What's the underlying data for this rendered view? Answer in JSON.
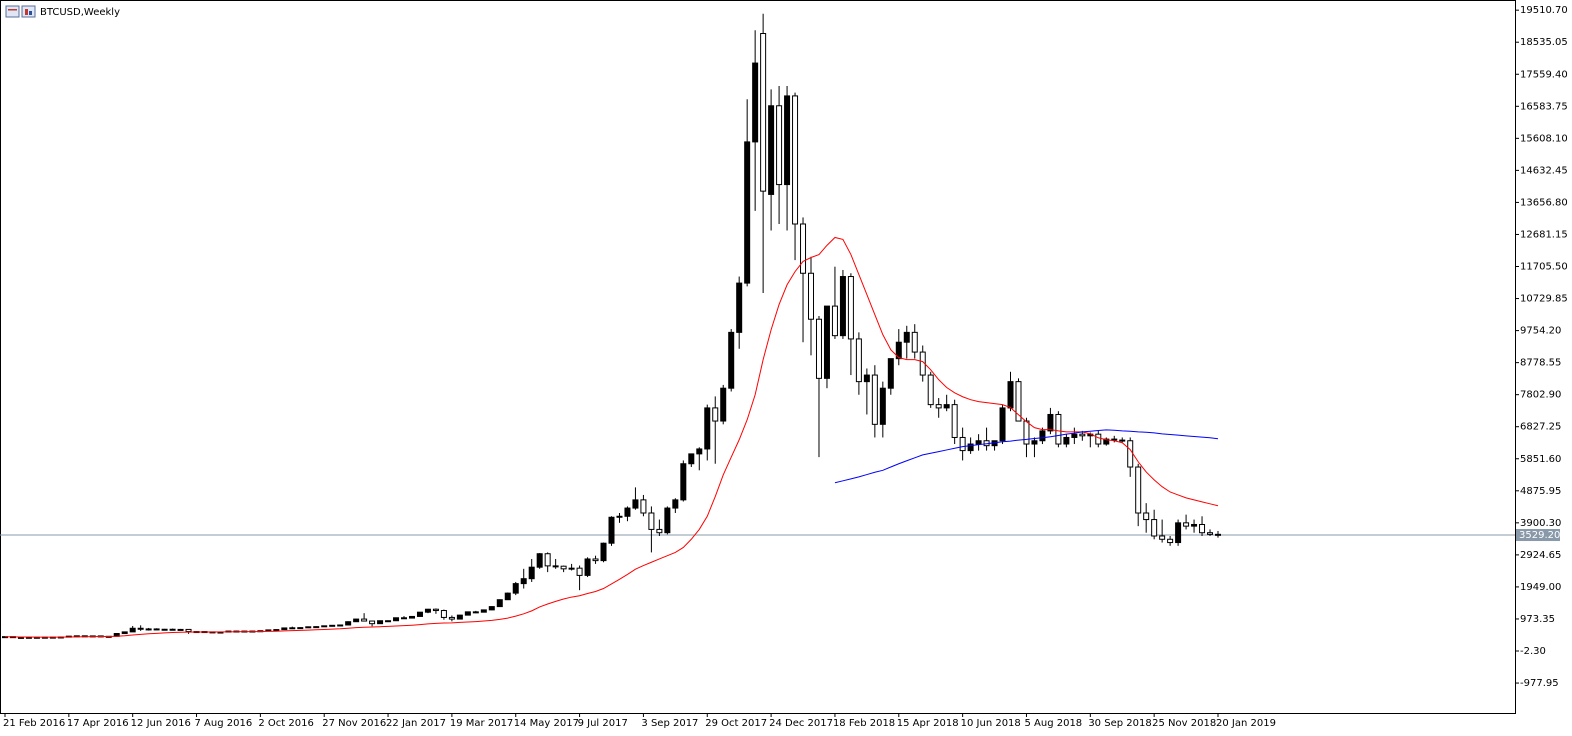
{
  "chart_data": {
    "type": "candlestick",
    "title": "BTCUSD,Weekly",
    "bull_color": "#000000",
    "bear_color": "#ffffff",
    "wick_color": "#000000",
    "categories": [
      "21 Feb 2016",
      null,
      null,
      null,
      null,
      null,
      null,
      null,
      "17 Apr 2016",
      null,
      null,
      null,
      null,
      null,
      null,
      null,
      "12 Jun 2016",
      null,
      null,
      null,
      null,
      null,
      null,
      null,
      "7 Aug 2016",
      null,
      null,
      null,
      null,
      null,
      null,
      null,
      "2 Oct 2016",
      null,
      null,
      null,
      null,
      null,
      null,
      null,
      "27 Nov 2016",
      null,
      null,
      null,
      null,
      null,
      null,
      null,
      "22 Jan 2017",
      null,
      null,
      null,
      null,
      null,
      null,
      null,
      "19 Mar 2017",
      null,
      null,
      null,
      null,
      null,
      null,
      null,
      "14 May 2017",
      null,
      null,
      null,
      null,
      null,
      null,
      null,
      "9 Jul 2017",
      null,
      null,
      null,
      null,
      null,
      null,
      null,
      "3 Sep 2017",
      null,
      null,
      null,
      null,
      null,
      null,
      null,
      "29 Oct 2017",
      null,
      null,
      null,
      null,
      null,
      null,
      null,
      "24 Dec 2017",
      null,
      null,
      null,
      null,
      null,
      null,
      null,
      "18 Feb 2018",
      null,
      null,
      null,
      null,
      null,
      null,
      null,
      "15 Apr 2018",
      null,
      null,
      null,
      null,
      null,
      null,
      null,
      "10 Jun 2018",
      null,
      null,
      null,
      null,
      null,
      null,
      null,
      "5 Aug 2018",
      null,
      null,
      null,
      null,
      null,
      null,
      null,
      "30 Sep 2018",
      null,
      null,
      null,
      null,
      null,
      null,
      null,
      "25 Nov 2018",
      null,
      null,
      null,
      null,
      null,
      null,
      null,
      "20 Jan 2019"
    ],
    "ohlc": [
      [
        420,
        440,
        405,
        435
      ],
      [
        435,
        440,
        400,
        410
      ],
      [
        410,
        420,
        405,
        412
      ],
      [
        412,
        418,
        408,
        415
      ],
      [
        415,
        420,
        410,
        416
      ],
      [
        416,
        422,
        412,
        418
      ],
      [
        418,
        424,
        415,
        420
      ],
      [
        420,
        430,
        418,
        425
      ],
      [
        425,
        455,
        422,
        450
      ],
      [
        450,
        465,
        445,
        460
      ],
      [
        460,
        465,
        440,
        455
      ],
      [
        455,
        462,
        448,
        457
      ],
      [
        457,
        460,
        438,
        442
      ],
      [
        442,
        450,
        438,
        445
      ],
      [
        445,
        535,
        440,
        530
      ],
      [
        530,
        590,
        525,
        580
      ],
      [
        580,
        760,
        575,
        690
      ],
      [
        690,
        780,
        610,
        660
      ],
      [
        660,
        700,
        620,
        670
      ],
      [
        670,
        690,
        640,
        650
      ],
      [
        650,
        670,
        640,
        660
      ],
      [
        660,
        680,
        650,
        655
      ],
      [
        655,
        670,
        645,
        655
      ],
      [
        655,
        660,
        520,
        590
      ],
      [
        590,
        600,
        570,
        590
      ],
      [
        590,
        595,
        570,
        580
      ],
      [
        580,
        590,
        570,
        575
      ],
      [
        575,
        585,
        565,
        575
      ],
      [
        575,
        610,
        570,
        605
      ],
      [
        605,
        612,
        600,
        605
      ],
      [
        605,
        610,
        595,
        600
      ],
      [
        600,
        610,
        595,
        605
      ],
      [
        605,
        620,
        600,
        615
      ],
      [
        615,
        645,
        612,
        640
      ],
      [
        640,
        655,
        630,
        650
      ],
      [
        650,
        710,
        645,
        700
      ],
      [
        700,
        740,
        690,
        705
      ],
      [
        705,
        720,
        690,
        710
      ],
      [
        710,
        745,
        705,
        735
      ],
      [
        735,
        750,
        730,
        740
      ],
      [
        740,
        770,
        735,
        765
      ],
      [
        765,
        785,
        755,
        780
      ],
      [
        780,
        795,
        770,
        790
      ],
      [
        790,
        900,
        785,
        890
      ],
      [
        890,
        980,
        885,
        970
      ],
      [
        970,
        1150,
        900,
        910
      ],
      [
        910,
        925,
        750,
        830
      ],
      [
        830,
        925,
        820,
        920
      ],
      [
        920,
        930,
        890,
        920
      ],
      [
        920,
        1015,
        915,
        1010
      ],
      [
        1010,
        1060,
        980,
        1000
      ],
      [
        1000,
        1060,
        990,
        1050
      ],
      [
        1050,
        1185,
        1045,
        1180
      ],
      [
        1180,
        1280,
        1150,
        1270
      ],
      [
        1270,
        1295,
        1130,
        1230
      ],
      [
        1230,
        1260,
        950,
        1020
      ],
      [
        1020,
        1080,
        900,
        970
      ],
      [
        970,
        1100,
        960,
        1090
      ],
      [
        1090,
        1200,
        1080,
        1190
      ],
      [
        1190,
        1220,
        1150,
        1180
      ],
      [
        1180,
        1260,
        1170,
        1250
      ],
      [
        1250,
        1360,
        1240,
        1350
      ],
      [
        1350,
        1570,
        1340,
        1560
      ],
      [
        1560,
        1780,
        1550,
        1760
      ],
      [
        1760,
        2100,
        1700,
        2050
      ],
      [
        2050,
        2500,
        1900,
        2200
      ],
      [
        2200,
        2800,
        2100,
        2550
      ],
      [
        2550,
        2980,
        2500,
        2960
      ],
      [
        2960,
        3000,
        2400,
        2590
      ],
      [
        2590,
        2800,
        2500,
        2580
      ],
      [
        2580,
        2600,
        2400,
        2500
      ],
      [
        2500,
        2650,
        2450,
        2520
      ],
      [
        2520,
        2600,
        1850,
        2300
      ],
      [
        2300,
        2850,
        2250,
        2800
      ],
      [
        2800,
        2900,
        2650,
        2750
      ],
      [
        2750,
        3300,
        2700,
        3280
      ],
      [
        3280,
        4100,
        3200,
        4070
      ],
      [
        4070,
        4200,
        3900,
        4100
      ],
      [
        4100,
        4400,
        3950,
        4350
      ],
      [
        4350,
        4980,
        4300,
        4600
      ],
      [
        4600,
        4750,
        4100,
        4200
      ],
      [
        4200,
        4400,
        3000,
        3700
      ],
      [
        3700,
        4000,
        3500,
        3600
      ],
      [
        3600,
        4400,
        3550,
        4350
      ],
      [
        4350,
        4650,
        4200,
        4600
      ],
      [
        4600,
        5800,
        4550,
        5700
      ],
      [
        5700,
        6000,
        5600,
        6000
      ],
      [
        6000,
        6200,
        5500,
        6150
      ],
      [
        6150,
        7500,
        5800,
        7400
      ],
      [
        7400,
        7750,
        5700,
        7000
      ],
      [
        7000,
        8100,
        6900,
        8000
      ],
      [
        8000,
        9800,
        7900,
        9700
      ],
      [
        9700,
        11400,
        9200,
        11200
      ],
      [
        11200,
        16800,
        11100,
        15500
      ],
      [
        15500,
        18900,
        13400,
        17900
      ],
      [
        18800,
        19400,
        10900,
        14000
      ],
      [
        13900,
        17100,
        12800,
        16600
      ],
      [
        16600,
        17200,
        13000,
        14200
      ],
      [
        14200,
        17200,
        12800,
        16900
      ],
      [
        16900,
        17000,
        11900,
        13000
      ],
      [
        13000,
        13200,
        9400,
        11500
      ],
      [
        11500,
        12000,
        9000,
        10100
      ],
      [
        10100,
        10200,
        5900,
        8300
      ],
      [
        8300,
        10500,
        8000,
        10500
      ],
      [
        10500,
        11700,
        9500,
        9600
      ],
      [
        9600,
        11600,
        9500,
        11400
      ],
      [
        11400,
        11500,
        8400,
        9500
      ],
      [
        9500,
        9700,
        7800,
        8200
      ],
      [
        8200,
        8600,
        7200,
        8400
      ],
      [
        8400,
        8700,
        6500,
        6900
      ],
      [
        6900,
        8200,
        6500,
        8000
      ],
      [
        8000,
        8900,
        7800,
        8900
      ],
      [
        8900,
        9800,
        8700,
        9400
      ],
      [
        9400,
        9900,
        8900,
        9700
      ],
      [
        9700,
        9950,
        8900,
        9100
      ],
      [
        9100,
        9300,
        8200,
        8400
      ],
      [
        8400,
        8500,
        7400,
        7500
      ],
      [
        7500,
        7700,
        7100,
        7400
      ],
      [
        7400,
        7800,
        7300,
        7500
      ],
      [
        7500,
        7650,
        6300,
        6500
      ],
      [
        6500,
        6800,
        5800,
        6100
      ],
      [
        6100,
        6500,
        6000,
        6300
      ],
      [
        6300,
        6600,
        6100,
        6400
      ],
      [
        6400,
        6800,
        6100,
        6250
      ],
      [
        6250,
        6400,
        6100,
        6400
      ],
      [
        6400,
        7500,
        6300,
        7400
      ],
      [
        7400,
        8500,
        7300,
        8200
      ],
      [
        8200,
        8300,
        7000,
        7000
      ],
      [
        7000,
        7100,
        5900,
        6300
      ],
      [
        6300,
        6500,
        5900,
        6400
      ],
      [
        6400,
        6800,
        6300,
        6700
      ],
      [
        6700,
        7400,
        6600,
        7200
      ],
      [
        7200,
        7300,
        6200,
        6300
      ],
      [
        6300,
        6600,
        6200,
        6500
      ],
      [
        6500,
        6800,
        6300,
        6600
      ],
      [
        6600,
        6700,
        6400,
        6550
      ],
      [
        6550,
        6650,
        6200,
        6600
      ],
      [
        6600,
        6700,
        6200,
        6300
      ],
      [
        6300,
        6500,
        6250,
        6450
      ],
      [
        6450,
        6550,
        6350,
        6420
      ],
      [
        6420,
        6500,
        6350,
        6400
      ],
      [
        6400,
        6500,
        5300,
        5600
      ],
      [
        5600,
        5700,
        3800,
        4200
      ],
      [
        4200,
        4500,
        3600,
        4000
      ],
      [
        4000,
        4300,
        3400,
        3500
      ],
      [
        3500,
        4000,
        3300,
        3400
      ],
      [
        3400,
        3500,
        3200,
        3300
      ],
      [
        3300,
        4000,
        3200,
        3900
      ],
      [
        3900,
        4150,
        3700,
        3800
      ],
      [
        3800,
        4000,
        3600,
        3850
      ],
      [
        3850,
        4100,
        3500,
        3600
      ],
      [
        3600,
        3700,
        3500,
        3550
      ],
      [
        3550,
        3650,
        3450,
        3529.2
      ]
    ],
    "series": [
      {
        "color": "#ff0000",
        "values": [
          430,
          428,
          425,
          423,
          421,
          420,
          420,
          421,
          424,
          428,
          432,
          436,
          438,
          440,
          448,
          462,
          485,
          505,
          522,
          535,
          548,
          560,
          570,
          572,
          575,
          577,
          578,
          579,
          582,
          585,
          587,
          589,
          592,
          596,
          601,
          610,
          618,
          626,
          635,
          644,
          654,
          664,
          674,
          690,
          710,
          722,
          728,
          738,
          746,
          758,
          770,
          783,
          800,
          822,
          840,
          850,
          856,
          868,
          882,
          894,
          910,
          930,
          960,
          1000,
          1060,
          1130,
          1220,
          1340,
          1430,
          1510,
          1580,
          1640,
          1680,
          1750,
          1810,
          1900,
          2040,
          2180,
          2330,
          2490,
          2600,
          2700,
          2800,
          2900,
          3000,
          3150,
          3400,
          3700,
          4100,
          4700,
          5360,
          5900,
          6430,
          7040,
          7800,
          8870,
          9780,
          10550,
          11150,
          11550,
          11860,
          11980,
          12070,
          12350,
          12590,
          12530,
          12070,
          11460,
          10850,
          10240,
          9630,
          9170,
          8930,
          8870,
          8870,
          8810,
          8560,
          8260,
          8020,
          7860,
          7740,
          7650,
          7590,
          7560,
          7530,
          7500,
          7410,
          7190,
          6980,
          6800,
          6740,
          6740,
          6700,
          6670,
          6670,
          6670,
          6610,
          6490,
          6430,
          6400,
          6340,
          6130,
          5760,
          5450,
          5210,
          5000,
          4840,
          4750,
          4660,
          4600,
          4540,
          4480,
          4420
        ]
      },
      {
        "color": "#0000ff",
        "values": [
          null,
          null,
          null,
          null,
          null,
          null,
          null,
          null,
          null,
          null,
          null,
          null,
          null,
          null,
          null,
          null,
          null,
          null,
          null,
          null,
          null,
          null,
          null,
          null,
          null,
          null,
          null,
          null,
          null,
          null,
          null,
          null,
          null,
          null,
          null,
          null,
          null,
          null,
          null,
          null,
          null,
          null,
          null,
          null,
          null,
          null,
          null,
          null,
          null,
          null,
          null,
          null,
          null,
          null,
          null,
          null,
          null,
          null,
          null,
          null,
          null,
          null,
          null,
          null,
          null,
          null,
          null,
          null,
          null,
          null,
          null,
          null,
          null,
          null,
          null,
          null,
          null,
          null,
          null,
          null,
          null,
          null,
          null,
          null,
          null,
          null,
          null,
          null,
          null,
          null,
          null,
          null,
          null,
          null,
          null,
          null,
          null,
          null,
          null,
          null,
          null,
          null,
          null,
          null,
          5120,
          5180,
          5240,
          5300,
          5370,
          5440,
          5500,
          5600,
          5700,
          5790,
          5880,
          5970,
          6020,
          6070,
          6120,
          6170,
          6220,
          6250,
          6280,
          6310,
          6340,
          6370,
          6390,
          6420,
          6440,
          6470,
          6490,
          6520,
          6560,
          6600,
          6630,
          6670,
          6690,
          6710,
          6730,
          6720,
          6700,
          6690,
          6670,
          6660,
          6640,
          6610,
          6590,
          6570,
          6550,
          6530,
          6510,
          6490,
          6460
        ]
      }
    ],
    "price_line": {
      "value": 3529.2,
      "label": "3529.20",
      "color": "#8899aa"
    },
    "ylim": [
      -1890,
      19790
    ],
    "yticks": [
      {
        "value": 19510.7,
        "label": "19510.70"
      },
      {
        "value": 18535.05,
        "label": "18535.05"
      },
      {
        "value": 17559.4,
        "label": "17559.40"
      },
      {
        "value": 16583.75,
        "label": "16583.75"
      },
      {
        "value": 15608.1,
        "label": "15608.10"
      },
      {
        "value": 14632.45,
        "label": "14632.45"
      },
      {
        "value": 13656.8,
        "label": "13656.80"
      },
      {
        "value": 12681.15,
        "label": "12681.15"
      },
      {
        "value": 11705.5,
        "label": "11705.50"
      },
      {
        "value": 10729.85,
        "label": "10729.85"
      },
      {
        "value": 9754.2,
        "label": "9754.20"
      },
      {
        "value": 8778.55,
        "label": "8778.55"
      },
      {
        "value": 7802.9,
        "label": "7802.90"
      },
      {
        "value": 6827.25,
        "label": "6827.25"
      },
      {
        "value": 5851.6,
        "label": "5851.60"
      },
      {
        "value": 4875.95,
        "label": "4875.95"
      },
      {
        "value": 3900.3,
        "label": "3900.30"
      },
      {
        "value": 2924.65,
        "label": "2924.65"
      },
      {
        "value": 1949,
        "label": "1949.00"
      },
      {
        "value": 973.35,
        "label": "973.35"
      },
      {
        "value": -2.3,
        "label": "-2.30"
      },
      {
        "value": -977.95,
        "label": "-977.95"
      }
    ],
    "grid": false
  }
}
